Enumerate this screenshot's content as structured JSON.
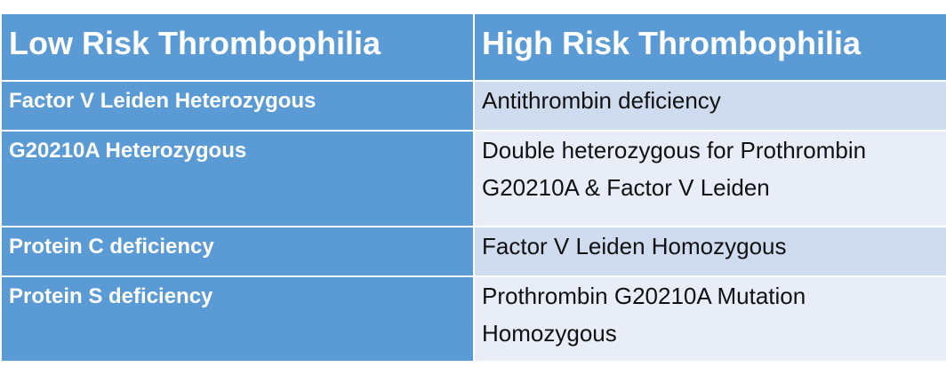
{
  "table": {
    "headers": [
      "Low Risk Thrombophilia",
      "High Risk Thrombophilia"
    ],
    "rows": [
      [
        "Factor V Leiden Heterozygous",
        "Antithrombin deficiency"
      ],
      [
        "G20210A Heterozygous",
        "Double heterozygous for Prothrombin G20210A & Factor V Leiden"
      ],
      [
        "Protein C deficiency",
        "Factor V Leiden Homozygous"
      ],
      [
        "Protein S deficiency",
        "Prothrombin G20210A Mutation Homozygous"
      ]
    ]
  }
}
